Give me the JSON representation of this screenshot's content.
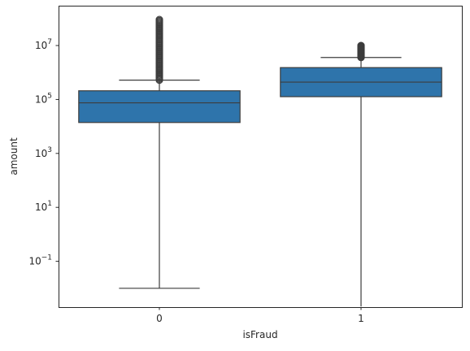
{
  "chart_data": {
    "type": "boxplot",
    "xlabel": "isFraud",
    "ylabel": "amount",
    "y_scale": "log",
    "ylim": [
      0.002,
      300000000
    ],
    "y_ticks": [
      {
        "value": 0.1,
        "base": "10",
        "exp": "−1"
      },
      {
        "value": 10,
        "base": "10",
        "exp": "1"
      },
      {
        "value": 1000,
        "base": "10",
        "exp": "3"
      },
      {
        "value": 100000,
        "base": "10",
        "exp": "5"
      },
      {
        "value": 10000000,
        "base": "10",
        "exp": "7"
      }
    ],
    "categories": [
      "0",
      "1"
    ],
    "box_color": "#2e74ab",
    "line_color": "#3d3d3d",
    "boxes": [
      {
        "category": "0",
        "whisker_low": 0.01,
        "q1": 14000,
        "median": 75000,
        "q3": 210000,
        "whisker_high": 520000,
        "outliers_range": [
          520000,
          92000000
        ]
      },
      {
        "category": "1",
        "whisker_low": 0.0021,
        "q1": 127000,
        "median": 440000,
        "q3": 1520000,
        "whisker_high": 3600000,
        "outliers_range": [
          3600000,
          10000000
        ]
      }
    ]
  }
}
